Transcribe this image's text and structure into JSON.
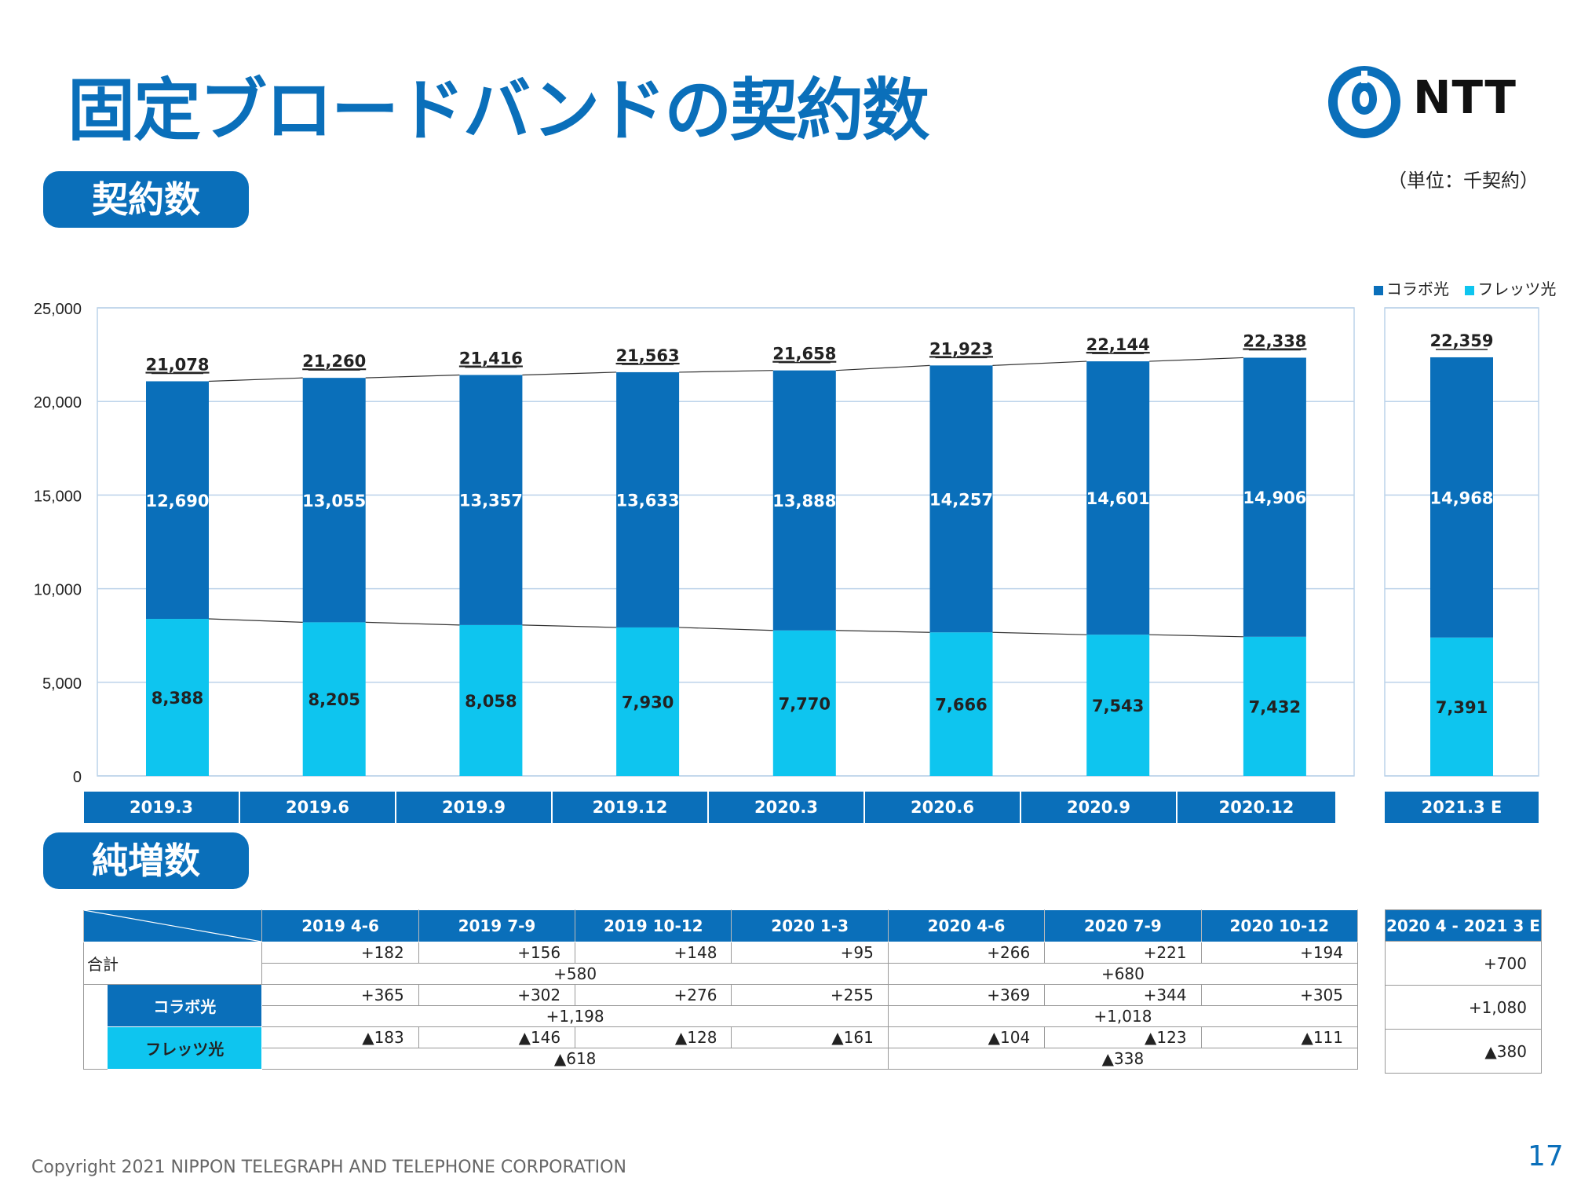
{
  "page": {
    "title": "固定ブロードバンドの契約数",
    "logo_text": "NTT",
    "unit": "（単位：千契約）",
    "section1": "契約数",
    "section2": "純増数",
    "footer": "Copyright 2021 NIPPON TELEGRAPH AND TELEPHONE CORPORATION",
    "page_number": "17"
  },
  "colors": {
    "collabo": "#0a6fba",
    "flets": "#0ec5ef",
    "accent": "#0a6fba"
  },
  "chart_data": {
    "type": "bar",
    "stacked": true,
    "categories": [
      "2019.3",
      "2019.6",
      "2019.9",
      "2019.12",
      "2020.3",
      "2020.6",
      "2020.9",
      "2020.12"
    ],
    "forecast_category": "2021.3 E",
    "series": [
      {
        "name": "コラボ光",
        "values": [
          12690,
          13055,
          13357,
          13633,
          13888,
          14257,
          14601,
          14906
        ],
        "forecast": 14968,
        "labels": [
          "12,690",
          "13,055",
          "13,357",
          "13,633",
          "13,888",
          "14,257",
          "14,601",
          "14,906"
        ],
        "forecast_label": "14,968"
      },
      {
        "name": "フレッツ光",
        "values": [
          8388,
          8205,
          8058,
          7930,
          7770,
          7666,
          7543,
          7432
        ],
        "forecast": 7391,
        "labels": [
          "8,388",
          "8,205",
          "8,058",
          "7,930",
          "7,770",
          "7,666",
          "7,543",
          "7,432"
        ],
        "forecast_label": "7,391"
      }
    ],
    "totals": [
      21078,
      21260,
      21416,
      21563,
      21658,
      21923,
      22144,
      22338
    ],
    "total_labels": [
      "21,078",
      "21,260",
      "21,416",
      "21,563",
      "21,658",
      "21,923",
      "22,144",
      "22,338"
    ],
    "forecast_total": 22359,
    "forecast_total_label": "22,359",
    "ylim": [
      0,
      25000
    ],
    "yticks": [
      "0",
      "5,000",
      "10,000",
      "15,000",
      "20,000",
      "25,000"
    ],
    "ytick_values": [
      0,
      5000,
      10000,
      15000,
      20000,
      25000
    ],
    "grid": true,
    "legend_position": "top-right"
  },
  "net_table": {
    "periods": [
      "2019 4-6",
      "2019 7-9",
      "2019 10-12",
      "2020 1-3",
      "2020 4-6",
      "2020 7-9",
      "2020 10-12"
    ],
    "forecast_period": "2020 4 - 2021 3 E",
    "rows": [
      {
        "label": "合計",
        "values": [
          "+182",
          "+156",
          "+148",
          "+95",
          "+266",
          "+221",
          "+194"
        ],
        "fy_values": [
          "+580",
          "+680"
        ],
        "forecast": "+700"
      },
      {
        "label": "コラボ光",
        "values": [
          "+365",
          "+302",
          "+276",
          "+255",
          "+369",
          "+344",
          "+305"
        ],
        "fy_values": [
          "+1,198",
          "+1,018"
        ],
        "forecast": "+1,080"
      },
      {
        "label": "フレッツ光",
        "values": [
          "▲183",
          "▲146",
          "▲128",
          "▲161",
          "▲104",
          "▲123",
          "▲111"
        ],
        "fy_values": [
          "▲618",
          "▲338"
        ],
        "forecast": "▲380"
      }
    ]
  }
}
